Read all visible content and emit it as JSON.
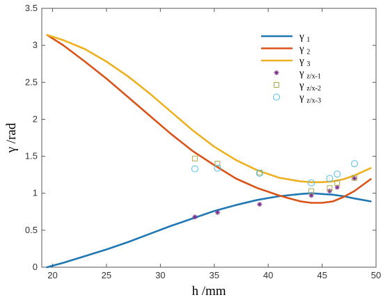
{
  "chart_data": {
    "type": "line",
    "xlabel": "h /mm",
    "ylabel": "γ /rad",
    "xlim": [
      19,
      50
    ],
    "ylim": [
      0,
      3.5
    ],
    "xticks": [
      20,
      25,
      30,
      35,
      40,
      45,
      50
    ],
    "yticks": [
      0,
      0.5,
      1,
      1.5,
      2,
      2.5,
      3,
      3.5
    ],
    "ytick_labels": [
      "0",
      "0.5",
      "1",
      "1.5",
      "2",
      "2.5",
      "3",
      "3.5"
    ],
    "grid": false,
    "legend_position": "top-right",
    "series": [
      {
        "name": "γ",
        "sub": "1",
        "kind": "line",
        "color": "#1f77b4",
        "x": [
          19.5,
          21,
          23,
          25,
          27,
          29,
          31,
          33,
          35,
          37,
          39,
          41,
          43,
          44,
          45,
          46,
          47,
          48,
          49.5
        ],
        "y": [
          0.0,
          0.06,
          0.15,
          0.24,
          0.34,
          0.45,
          0.56,
          0.66,
          0.76,
          0.84,
          0.91,
          0.96,
          0.99,
          1.0,
          0.99,
          0.98,
          0.96,
          0.93,
          0.89
        ]
      },
      {
        "name": "γ",
        "sub": "2",
        "kind": "line",
        "color": "#d95319",
        "x": [
          19.5,
          21,
          23,
          25,
          27,
          29,
          31,
          33,
          35,
          37,
          39,
          41,
          42,
          43,
          44,
          45,
          46,
          47,
          48,
          49.5
        ],
        "y": [
          3.14,
          3.0,
          2.78,
          2.55,
          2.3,
          2.05,
          1.8,
          1.57,
          1.38,
          1.2,
          1.07,
          0.97,
          0.93,
          0.89,
          0.87,
          0.87,
          0.89,
          0.95,
          1.03,
          1.19
        ]
      },
      {
        "name": "γ",
        "sub": "3",
        "kind": "line",
        "color": "#edb120",
        "x": [
          19.5,
          21,
          23,
          25,
          27,
          29,
          31,
          33,
          35,
          37,
          39,
          41,
          43,
          44,
          45,
          46,
          47,
          48,
          49.5
        ],
        "y": [
          3.14,
          3.07,
          2.95,
          2.78,
          2.58,
          2.35,
          2.1,
          1.85,
          1.63,
          1.45,
          1.31,
          1.21,
          1.16,
          1.15,
          1.15,
          1.16,
          1.19,
          1.24,
          1.34
        ]
      },
      {
        "name": "γ",
        "sub": "z/x-1",
        "kind": "marker",
        "marker": "asterisk",
        "color": "#7e2f8e",
        "x": [
          33.2,
          35.3,
          39.2,
          44.0,
          45.7,
          46.4,
          48.0
        ],
        "y": [
          0.68,
          0.74,
          0.85,
          0.97,
          1.03,
          1.08,
          1.2
        ]
      },
      {
        "name": "γ",
        "sub": "z/x-2",
        "kind": "marker",
        "marker": "square",
        "color": "#a9a94a",
        "x": [
          33.2,
          35.3,
          39.2,
          44.0,
          45.7,
          46.4,
          48.0
        ],
        "y": [
          1.47,
          1.4,
          1.28,
          1.03,
          1.07,
          1.14,
          1.21
        ]
      },
      {
        "name": "γ",
        "sub": "z/x-3",
        "kind": "marker",
        "marker": "circle",
        "color": "#4dbeee",
        "x": [
          33.2,
          35.3,
          39.2,
          44.0,
          45.7,
          46.4,
          48.0
        ],
        "y": [
          1.33,
          1.34,
          1.27,
          1.14,
          1.2,
          1.26,
          1.4
        ]
      }
    ]
  }
}
